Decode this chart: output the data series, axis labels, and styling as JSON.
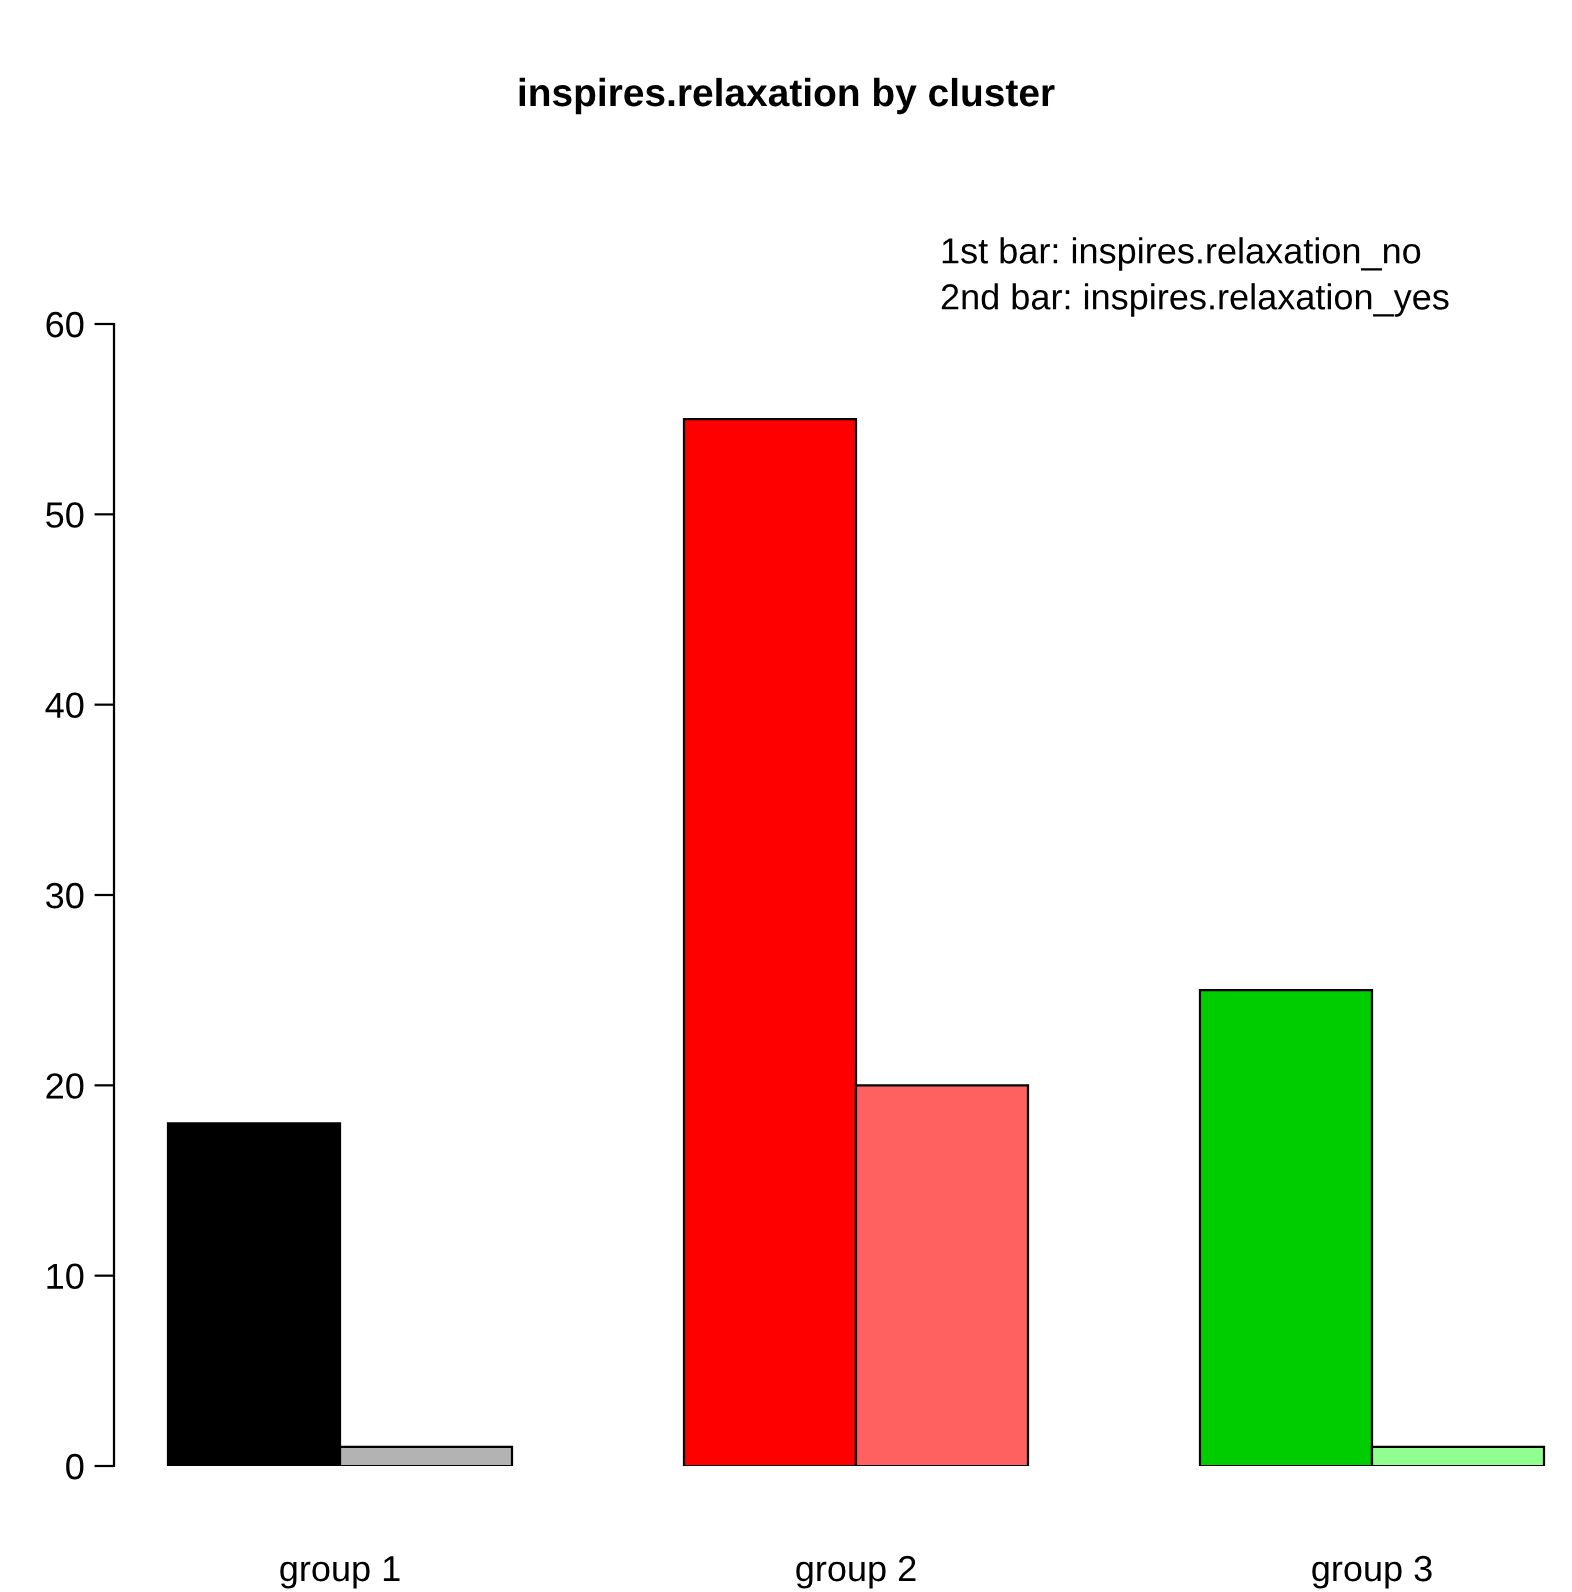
{
  "chart_data": {
    "type": "bar",
    "title": "inspires.relaxation by cluster",
    "categories": [
      "group 1",
      "group 2",
      "group 3"
    ],
    "series": [
      {
        "colors": [
          "#000000",
          "#ff0000",
          "#00cd00"
        ],
        "values": [
          18,
          55,
          25
        ]
      },
      {
        "colors": [
          "#b3b3b3",
          "#ff6060",
          "#90ff90"
        ],
        "values": [
          1,
          20,
          1
        ]
      }
    ],
    "ylim": [
      0,
      60
    ],
    "yticks": [
      0,
      10,
      20,
      30,
      40,
      50,
      60
    ],
    "annotations": [
      "1st bar: inspires.relaxation_no",
      "2nd bar: inspires.relaxation_yes"
    ],
    "grid": false,
    "legend": false
  }
}
